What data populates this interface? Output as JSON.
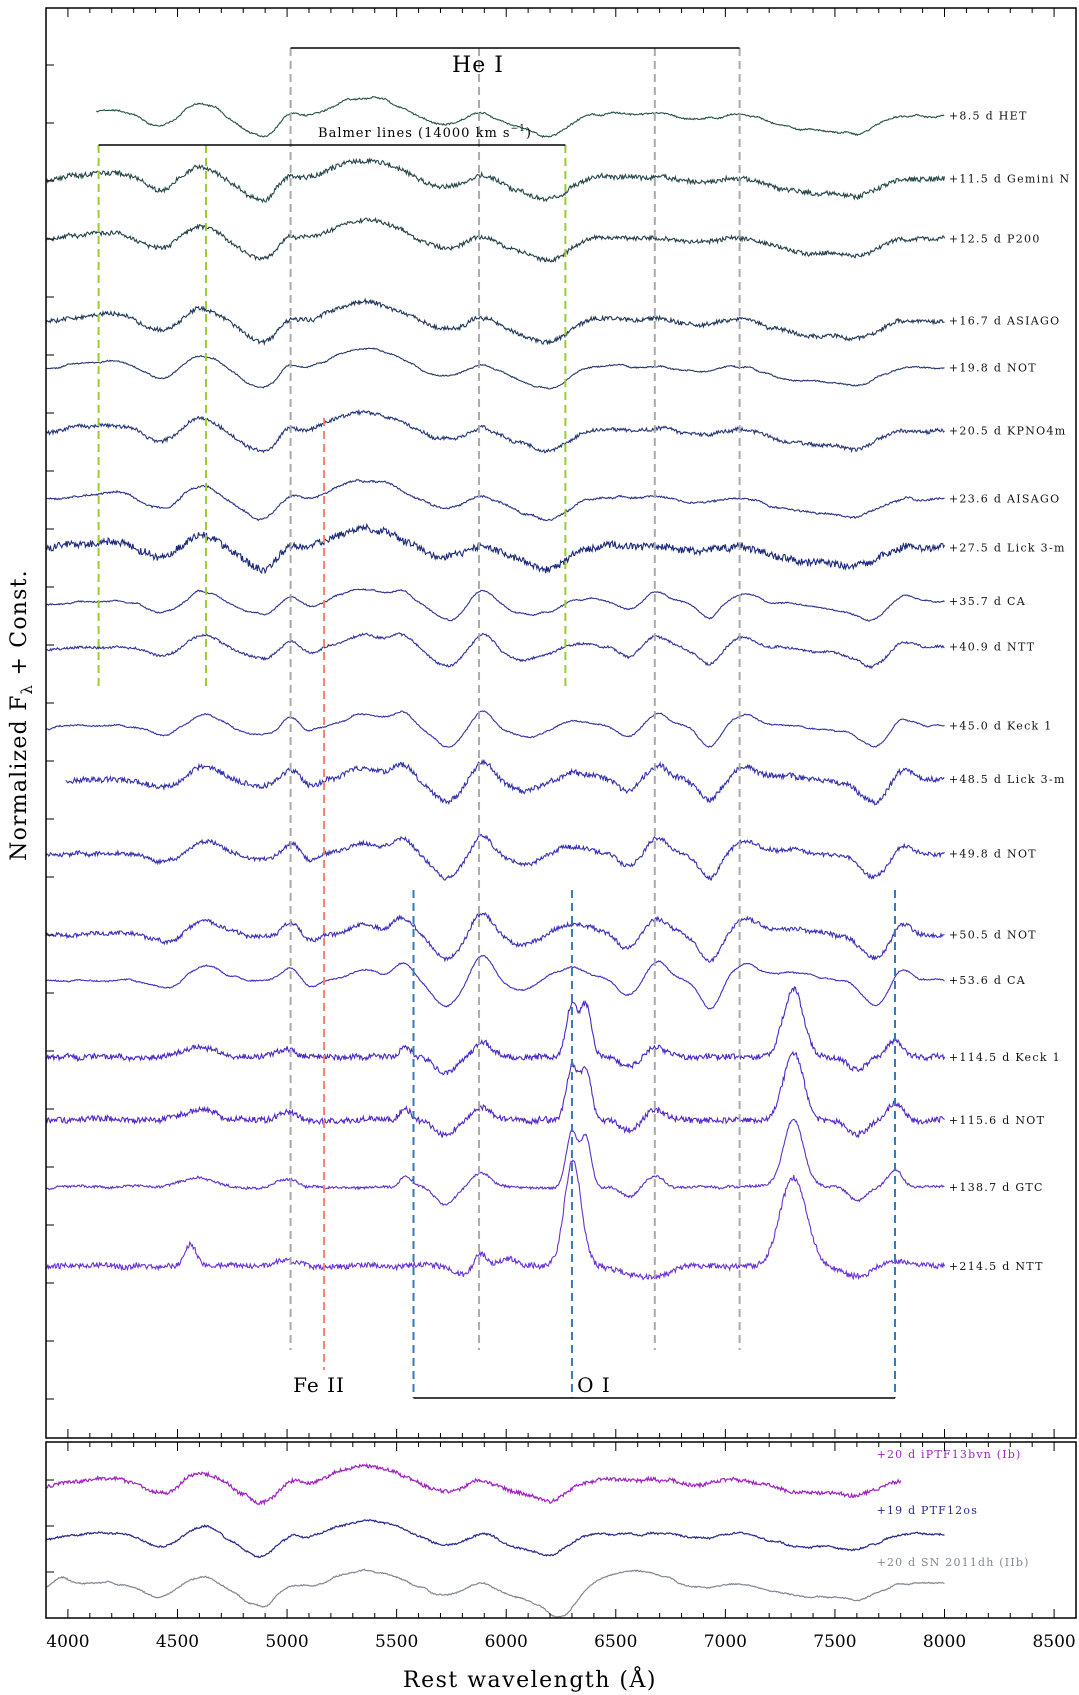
{
  "chart_data": {
    "type": "line",
    "title": "",
    "xlabel": "Rest wavelength (Å)",
    "ylabel": "Normalized F",
    "ylabel_sub": "λ",
    "ylabel_tail": " + Const.",
    "xlim": [
      3900,
      8600
    ],
    "x_ticks": [
      4000,
      4500,
      5000,
      5500,
      6000,
      6500,
      7000,
      7500,
      8000,
      8500
    ],
    "grid": false,
    "line_markers": {
      "he_i": {
        "label": "He I",
        "wavelengths": [
          5016,
          5876,
          6678,
          7065
        ],
        "color": "#aaaaaa"
      },
      "balmer": {
        "label": "Balmer lines (14000 km s",
        "label_sup": "−1",
        "label_tail": ")",
        "wavelengths": [
          4140,
          4630,
          6270
        ],
        "color": "#9acd32"
      },
      "fe_ii": {
        "label": "Fe II",
        "wavelengths": [
          5169
        ],
        "color": "#f08070"
      },
      "o_i": {
        "label": "O I",
        "wavelengths": [
          5577,
          6300,
          7774
        ],
        "color": "#3a78b0"
      }
    },
    "series": [
      {
        "name": "+8.5 d HET",
        "color": "#28504a",
        "noise": 0.25,
        "x_range": [
          4130,
          8000
        ]
      },
      {
        "name": "+11.5 d Gemini N",
        "color": "#26484a",
        "noise": 0.8,
        "x_range": [
          3900,
          8000
        ]
      },
      {
        "name": "+12.5 d P200",
        "color": "#24404a",
        "noise": 0.7,
        "x_range": [
          3900,
          8000
        ]
      },
      {
        "name": "+16.7 d ASIAGO",
        "color": "#22385a",
        "noise": 0.7,
        "x_range": [
          3900,
          8000
        ]
      },
      {
        "name": "+19.8 d NOT",
        "color": "#24386a",
        "noise": 0.2,
        "x_range": [
          3900,
          8000
        ]
      },
      {
        "name": "+20.5 d KPNO4m",
        "color": "#26367a",
        "noise": 0.6,
        "x_range": [
          3900,
          8000
        ]
      },
      {
        "name": "+23.6 d AISAGO",
        "color": "#283488",
        "noise": 0.3,
        "x_range": [
          3900,
          8000
        ]
      },
      {
        "name": "+27.5 d Lick 3-m",
        "color": "#1c2a7a",
        "noise": 1.2,
        "x_range": [
          3900,
          8000
        ]
      },
      {
        "name": "+35.7 d CA",
        "color": "#2e3490",
        "noise": 0.2,
        "x_range": [
          3900,
          8000
        ]
      },
      {
        "name": "+40.9 d NTT",
        "color": "#30349a",
        "noise": 0.4,
        "x_range": [
          3900,
          8000
        ]
      },
      {
        "name": "+45.0 d Keck 1",
        "color": "#3234a4",
        "noise": 0.2,
        "x_range": [
          3900,
          8000
        ]
      },
      {
        "name": "+48.5 d Lick 3-m",
        "color": "#3432ae",
        "noise": 0.9,
        "x_range": [
          3990,
          8000
        ]
      },
      {
        "name": "+49.8 d NOT",
        "color": "#3630b4",
        "noise": 0.7,
        "x_range": [
          3900,
          8000
        ]
      },
      {
        "name": "+50.5 d NOT",
        "color": "#3a30ba",
        "noise": 0.7,
        "x_range": [
          3900,
          8000
        ]
      },
      {
        "name": "+53.6 d CA",
        "color": "#3e30c0",
        "noise": 0.2,
        "x_range": [
          3900,
          8000
        ]
      },
      {
        "name": "+114.5 d Keck 1",
        "color": "#4a28c4",
        "noise": 0.9,
        "x_range": [
          3900,
          8000
        ]
      },
      {
        "name": "+115.6 d NOT",
        "color": "#5428c8",
        "noise": 1.0,
        "x_range": [
          3900,
          8000
        ]
      },
      {
        "name": "+138.7 d GTC",
        "color": "#6030cc",
        "noise": 0.4,
        "x_range": [
          3900,
          8000
        ]
      },
      {
        "name": "+214.5 d NTT",
        "color": "#6a32d2",
        "noise": 0.9,
        "x_range": [
          3900,
          8000
        ]
      }
    ],
    "comparison_series": [
      {
        "name": "+20 d iPTF13bvn (Ib)",
        "color": "#a020c0",
        "noise": 0.6,
        "x_range": [
          3900,
          7800
        ]
      },
      {
        "name": "+19 d PTF12os",
        "color": "#262a8a",
        "noise": 0.3,
        "x_range": [
          3900,
          8000
        ]
      },
      {
        "name": "+20 d SN 2011dh (IIb)",
        "color": "#808892",
        "noise": 0.2,
        "x_range": [
          3900,
          8000
        ]
      }
    ]
  }
}
